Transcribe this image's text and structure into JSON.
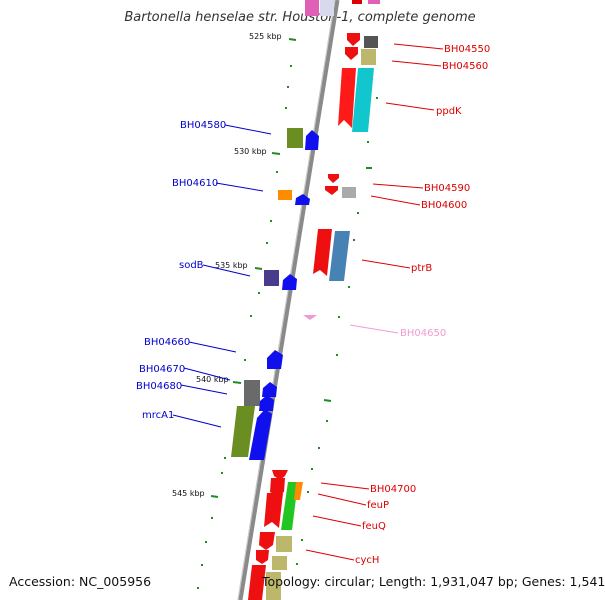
{
  "title": "Bartonella henselae str. Houston-1, complete genome",
  "footer": {
    "accession": "Accession: NC_005956",
    "summary": "Topology: circular; Length: 1,931,047 bp; Genes: 1,541"
  },
  "scale_labels": [
    "525 kbp",
    "530 kbp",
    "535 kbp",
    "540 kbp",
    "545 kbp"
  ],
  "genes": [
    {
      "name": "BH04550",
      "color": "#dd0000",
      "strand": "plus"
    },
    {
      "name": "BH04560",
      "color": "#dd0000",
      "strand": "plus"
    },
    {
      "name": "ppdK",
      "color": "#dd0000",
      "strand": "plus"
    },
    {
      "name": "BH04580",
      "color": "#0000cc",
      "strand": "minus"
    },
    {
      "name": "BH04590",
      "color": "#dd0000",
      "strand": "plus"
    },
    {
      "name": "BH04610",
      "color": "#0000cc",
      "strand": "minus"
    },
    {
      "name": "BH04600",
      "color": "#dd0000",
      "strand": "plus"
    },
    {
      "name": "ptrB",
      "color": "#dd0000",
      "strand": "plus"
    },
    {
      "name": "sodB",
      "color": "#0000cc",
      "strand": "minus"
    },
    {
      "name": "BH04650",
      "color": "#f29ad0",
      "strand": "plus"
    },
    {
      "name": "BH04660",
      "color": "#0000cc",
      "strand": "minus"
    },
    {
      "name": "BH04670",
      "color": "#0000cc",
      "strand": "minus"
    },
    {
      "name": "BH04680",
      "color": "#0000cc",
      "strand": "minus"
    },
    {
      "name": "mrcA1",
      "color": "#0000cc",
      "strand": "minus"
    },
    {
      "name": "BH04700",
      "color": "#dd0000",
      "strand": "plus"
    },
    {
      "name": "feuP",
      "color": "#dd0000",
      "strand": "plus"
    },
    {
      "name": "feuQ",
      "color": "#dd0000",
      "strand": "plus"
    },
    {
      "name": "cycH",
      "color": "#dd0000",
      "strand": "plus"
    }
  ]
}
